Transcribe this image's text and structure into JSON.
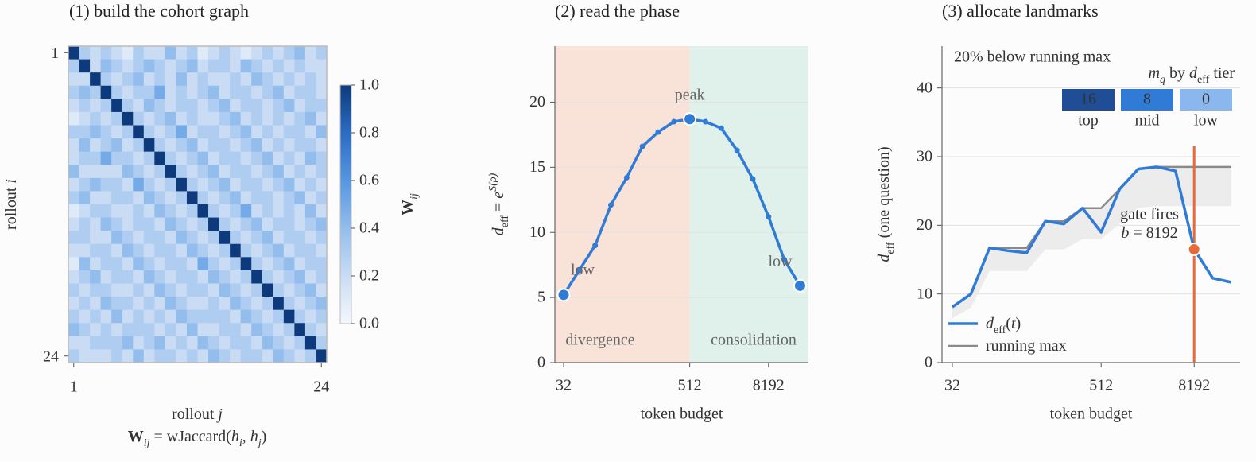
{
  "chart_data": [
    {
      "type": "heatmap",
      "title": "(1) build the cohort graph",
      "z": [
        [
          1,
          0.3,
          0.2,
          0.3,
          0.2,
          0.1,
          0.3,
          0.2,
          0.2,
          0.4,
          0.2,
          0.3,
          0.1,
          0.2,
          0.3,
          0.2,
          0.1,
          0.2,
          0.3,
          0.2,
          0.3,
          0.4,
          0.2,
          0.3
        ],
        [
          0.3,
          1,
          0.2,
          0.4,
          0.3,
          0.2,
          0.3,
          0.4,
          0.3,
          0.2,
          0.3,
          0.4,
          0.2,
          0.3,
          0.3,
          0.2,
          0.4,
          0.3,
          0.2,
          0.3,
          0.2,
          0.3,
          0.2,
          0.2
        ],
        [
          0.2,
          0.2,
          1,
          0.3,
          0.2,
          0.3,
          0.4,
          0.2,
          0.3,
          0.2,
          0.4,
          0.2,
          0.3,
          0.2,
          0.2,
          0.3,
          0.2,
          0.4,
          0.3,
          0.2,
          0.3,
          0.2,
          0.3,
          0.2
        ],
        [
          0.3,
          0.4,
          0.3,
          1,
          0.3,
          0.2,
          0.3,
          0.3,
          0.5,
          0.2,
          0.3,
          0.2,
          0.3,
          0.4,
          0.2,
          0.3,
          0.3,
          0.2,
          0.3,
          0.4,
          0.2,
          0.3,
          0.3,
          0.2
        ],
        [
          0.2,
          0.3,
          0.2,
          0.3,
          1,
          0.3,
          0.2,
          0.4,
          0.3,
          0.2,
          0.3,
          0.3,
          0.2,
          0.3,
          0.4,
          0.2,
          0.3,
          0.3,
          0.2,
          0.3,
          0.4,
          0.2,
          0.3,
          0.3
        ],
        [
          0.1,
          0.2,
          0.3,
          0.2,
          0.3,
          1,
          0.3,
          0.2,
          0.3,
          0.4,
          0.2,
          0.3,
          0.2,
          0.2,
          0.3,
          0.4,
          0.2,
          0.3,
          0.2,
          0.3,
          0.2,
          0.3,
          0.4,
          0.2
        ],
        [
          0.3,
          0.3,
          0.4,
          0.3,
          0.2,
          0.3,
          1,
          0.3,
          0.2,
          0.3,
          0.5,
          0.2,
          0.3,
          0.3,
          0.2,
          0.3,
          0.4,
          0.2,
          0.3,
          0.2,
          0.3,
          0.3,
          0.2,
          0.4
        ],
        [
          0.2,
          0.4,
          0.2,
          0.3,
          0.4,
          0.2,
          0.3,
          1,
          0.3,
          0.2,
          0.3,
          0.4,
          0.2,
          0.3,
          0.3,
          0.2,
          0.3,
          0.4,
          0.2,
          0.3,
          0.2,
          0.3,
          0.3,
          0.2
        ],
        [
          0.2,
          0.3,
          0.3,
          0.5,
          0.3,
          0.3,
          0.2,
          0.3,
          1,
          0.3,
          0.2,
          0.3,
          0.4,
          0.2,
          0.3,
          0.3,
          0.2,
          0.3,
          0.4,
          0.2,
          0.3,
          0.2,
          0.4,
          0.3
        ],
        [
          0.4,
          0.2,
          0.2,
          0.2,
          0.2,
          0.4,
          0.3,
          0.2,
          0.3,
          1,
          0.3,
          0.2,
          0.3,
          0.4,
          0.2,
          0.3,
          0.3,
          0.2,
          0.3,
          0.4,
          0.2,
          0.3,
          0.2,
          0.3
        ],
        [
          0.2,
          0.3,
          0.4,
          0.3,
          0.3,
          0.2,
          0.5,
          0.3,
          0.2,
          0.3,
          1,
          0.3,
          0.2,
          0.3,
          0.4,
          0.2,
          0.3,
          0.3,
          0.2,
          0.3,
          0.4,
          0.2,
          0.3,
          0.2
        ],
        [
          0.3,
          0.4,
          0.2,
          0.2,
          0.3,
          0.3,
          0.2,
          0.4,
          0.3,
          0.2,
          0.3,
          1,
          0.3,
          0.2,
          0.3,
          0.4,
          0.2,
          0.3,
          0.3,
          0.2,
          0.3,
          0.4,
          0.2,
          0.3
        ],
        [
          0.1,
          0.2,
          0.3,
          0.3,
          0.2,
          0.2,
          0.3,
          0.2,
          0.4,
          0.3,
          0.2,
          0.3,
          1,
          0.3,
          0.2,
          0.3,
          0.5,
          0.2,
          0.3,
          0.2,
          0.3,
          0.2,
          0.4,
          0.2
        ],
        [
          0.2,
          0.3,
          0.2,
          0.4,
          0.3,
          0.2,
          0.3,
          0.3,
          0.2,
          0.4,
          0.3,
          0.2,
          0.3,
          1,
          0.3,
          0.2,
          0.3,
          0.4,
          0.2,
          0.3,
          0.3,
          0.2,
          0.3,
          0.4
        ],
        [
          0.3,
          0.3,
          0.2,
          0.2,
          0.4,
          0.3,
          0.2,
          0.3,
          0.3,
          0.2,
          0.4,
          0.3,
          0.2,
          0.3,
          1,
          0.3,
          0.2,
          0.3,
          0.4,
          0.2,
          0.3,
          0.3,
          0.2,
          0.3
        ],
        [
          0.2,
          0.2,
          0.3,
          0.3,
          0.2,
          0.4,
          0.3,
          0.2,
          0.3,
          0.3,
          0.2,
          0.4,
          0.3,
          0.2,
          0.3,
          1,
          0.3,
          0.2,
          0.3,
          0.4,
          0.2,
          0.3,
          0.3,
          0.2
        ],
        [
          0.1,
          0.4,
          0.2,
          0.3,
          0.3,
          0.2,
          0.4,
          0.3,
          0.2,
          0.3,
          0.3,
          0.2,
          0.5,
          0.3,
          0.2,
          0.3,
          1,
          0.3,
          0.2,
          0.3,
          0.4,
          0.2,
          0.3,
          0.3
        ],
        [
          0.2,
          0.3,
          0.4,
          0.2,
          0.3,
          0.3,
          0.2,
          0.4,
          0.3,
          0.2,
          0.3,
          0.3,
          0.2,
          0.4,
          0.3,
          0.2,
          0.3,
          1,
          0.3,
          0.2,
          0.3,
          0.4,
          0.2,
          0.3
        ],
        [
          0.3,
          0.2,
          0.3,
          0.3,
          0.2,
          0.2,
          0.3,
          0.2,
          0.4,
          0.3,
          0.2,
          0.3,
          0.3,
          0.2,
          0.4,
          0.3,
          0.2,
          0.3,
          1,
          0.3,
          0.2,
          0.3,
          0.4,
          0.2
        ],
        [
          0.2,
          0.3,
          0.2,
          0.4,
          0.3,
          0.3,
          0.2,
          0.3,
          0.2,
          0.4,
          0.3,
          0.2,
          0.2,
          0.3,
          0.2,
          0.4,
          0.3,
          0.2,
          0.3,
          1,
          0.3,
          0.2,
          0.3,
          0.4
        ],
        [
          0.3,
          0.2,
          0.3,
          0.2,
          0.4,
          0.2,
          0.3,
          0.2,
          0.3,
          0.2,
          0.4,
          0.3,
          0.3,
          0.3,
          0.3,
          0.2,
          0.4,
          0.3,
          0.2,
          0.3,
          1,
          0.3,
          0.2,
          0.3
        ],
        [
          0.4,
          0.3,
          0.2,
          0.3,
          0.2,
          0.3,
          0.3,
          0.3,
          0.2,
          0.3,
          0.2,
          0.4,
          0.2,
          0.2,
          0.3,
          0.3,
          0.2,
          0.4,
          0.3,
          0.2,
          0.3,
          1,
          0.3,
          0.2
        ],
        [
          0.2,
          0.2,
          0.3,
          0.3,
          0.3,
          0.4,
          0.2,
          0.3,
          0.4,
          0.2,
          0.3,
          0.2,
          0.4,
          0.3,
          0.2,
          0.3,
          0.3,
          0.2,
          0.4,
          0.3,
          0.2,
          0.3,
          1,
          0.3
        ],
        [
          0.3,
          0.2,
          0.2,
          0.2,
          0.3,
          0.2,
          0.4,
          0.2,
          0.3,
          0.3,
          0.2,
          0.3,
          0.2,
          0.4,
          0.3,
          0.2,
          0.3,
          0.3,
          0.2,
          0.4,
          0.3,
          0.2,
          0.3,
          1
        ]
      ],
      "colormap": [
        "#f4f8fd",
        "#c9dcf4",
        "#93bdec",
        "#5596e2",
        "#2b6cc4",
        "#0d3a7c"
      ],
      "zlim": [
        0,
        1
      ],
      "cbar_ticks": [
        {
          "value": 0,
          "label": "0.0"
        },
        0.2,
        0.4,
        0.6,
        0.8,
        {
          "value": 1,
          "label": "1.0"
        }
      ],
      "cbar_label": [
        {
          "t": "W",
          "s": "b"
        },
        {
          "t": "ij",
          "s": "isub"
        }
      ],
      "xticks": [
        1,
        24
      ],
      "yticks": [
        1,
        24
      ],
      "xlabel": [
        {
          "t": "rollout "
        },
        {
          "t": "j",
          "s": "i"
        }
      ],
      "formula": [
        {
          "t": "W",
          "s": "b"
        },
        {
          "t": "ij",
          "s": "isub"
        },
        {
          "t": " = wJaccard("
        },
        {
          "t": "h",
          "s": "i"
        },
        {
          "t": "i",
          "s": "isub"
        },
        {
          "t": ", "
        },
        {
          "t": "h",
          "s": "i"
        },
        {
          "t": "j",
          "s": "isub"
        },
        {
          "t": ")"
        }
      ],
      "ylabel": [
        {
          "t": "rollout "
        },
        {
          "t": "i",
          "s": "i"
        }
      ]
    },
    {
      "type": "line",
      "title": "(2) read the phase",
      "categories": [
        "32",
        null,
        null,
        null,
        null,
        null,
        null,
        null,
        "512",
        null,
        null,
        null,
        null,
        "8192",
        null,
        null
      ],
      "values": [
        5.2,
        7.1,
        9.0,
        12.1,
        14.2,
        16.6,
        17.7,
        18.5,
        18.7,
        18.5,
        18.0,
        16.3,
        14.1,
        11.2,
        7.9,
        5.9
      ],
      "color": "#2f7bd6",
      "ylim": [
        0,
        24.3
      ],
      "yticks": [
        0,
        5,
        10,
        15,
        20
      ],
      "grid": true,
      "xlabel": "token budget",
      "ylabel": [
        {
          "t": "d",
          "s": "i"
        },
        {
          "t": "eff",
          "s": "sub"
        },
        {
          "t": " = "
        },
        {
          "t": "e",
          "s": "i"
        },
        {
          "t": "S(ρ)",
          "s": "isup"
        }
      ],
      "annotations": [
        "low",
        "peak",
        "low"
      ],
      "regions": [
        {
          "label": "divergence",
          "color": "#f9e3d9"
        },
        {
          "label": "consolidation",
          "color": "#dff1ea"
        }
      ]
    },
    {
      "type": "line",
      "title": "(3) allocate landmarks",
      "categories": [
        "32",
        null,
        null,
        null,
        null,
        null,
        null,
        null,
        "512",
        null,
        null,
        null,
        null,
        "8192",
        null,
        null
      ],
      "series": [
        {
          "name": [
            {
              "t": "d",
              "s": "i"
            },
            {
              "t": "eff",
              "s": "sub"
            },
            {
              "t": "("
            },
            {
              "t": "t",
              "s": "i"
            },
            {
              "t": ")"
            }
          ],
          "color": "#2f7bd6",
          "values": [
            8.1,
            10.0,
            16.7,
            16.3,
            16.0,
            20.6,
            20.2,
            22.5,
            19.0,
            25.3,
            28.2,
            28.5,
            27.9,
            16.5,
            12.3,
            11.7
          ]
        },
        {
          "name": [
            {
              "t": "running max"
            }
          ],
          "color": "#8a8a8a",
          "values": [
            8.1,
            10.0,
            16.7,
            16.7,
            16.7,
            20.6,
            20.6,
            22.5,
            22.5,
            25.3,
            28.2,
            28.5,
            28.5,
            28.5,
            28.5,
            28.5
          ]
        }
      ],
      "band_note": "20% below running max",
      "band_fraction": 0.2,
      "band_color": "#ececec",
      "ylim": [
        0,
        46.1
      ],
      "yticks": [
        0,
        10,
        20,
        30,
        40
      ],
      "grid": true,
      "xlabel": "token budget",
      "ylabel": [
        {
          "t": "d",
          "s": "i"
        },
        {
          "t": "eff",
          "s": "sub"
        },
        {
          "t": " (one question)"
        }
      ],
      "gate": {
        "label": "gate fires",
        "sublabel": [
          {
            "t": "b",
            "s": "i"
          },
          {
            "t": " = 8192"
          }
        ],
        "color": "#e8693a"
      },
      "tiers": {
        "title": [
          {
            "t": "m",
            "s": "i"
          },
          {
            "t": "q",
            "s": "isub"
          },
          {
            "t": " by "
          },
          {
            "t": "d",
            "s": "i"
          },
          {
            "t": "eff",
            "s": "sub"
          },
          {
            "t": " tier"
          }
        ],
        "names": [
          "top",
          "mid",
          "low"
        ],
        "values": [
          16,
          8,
          0
        ],
        "colors": [
          "#1f4e96",
          "#2f7bd6",
          "#8ab8ee"
        ]
      }
    }
  ]
}
